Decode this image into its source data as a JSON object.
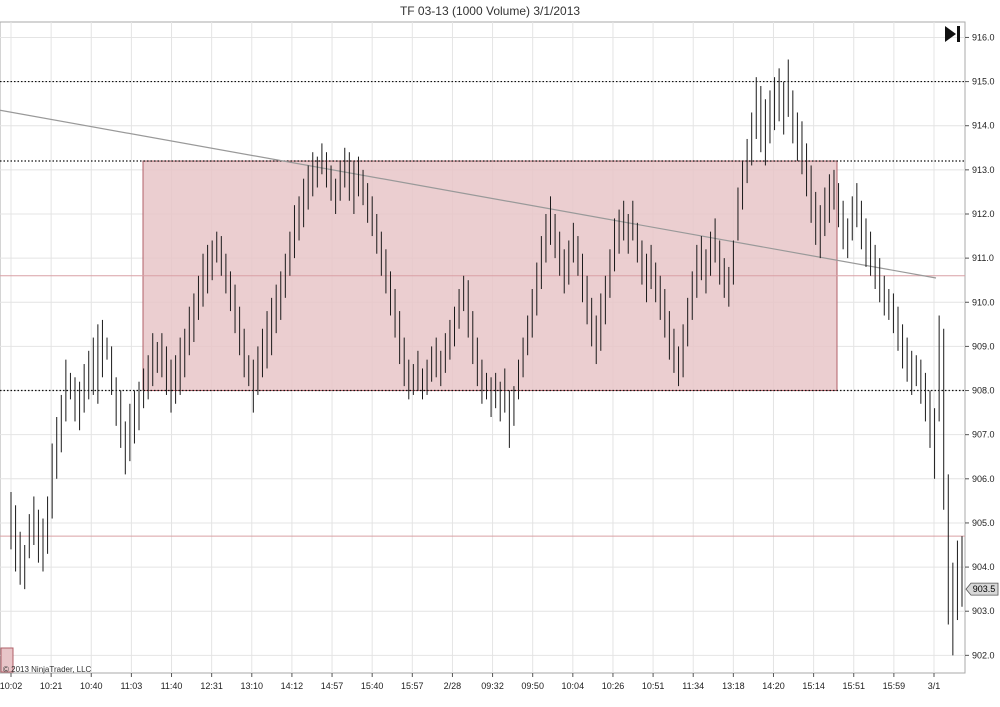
{
  "chart_data": {
    "type": "ohlc",
    "title": "TF 03-13 (1000 Volume)  3/1/2013",
    "ylim": [
      901.6,
      916.35
    ],
    "y_ticks": [
      "902.0",
      "903.0",
      "904.0",
      "905.0",
      "906.0",
      "907.0",
      "908.0",
      "909.0",
      "910.0",
      "911.0",
      "912.0",
      "913.0",
      "914.0",
      "915.0",
      "916.0"
    ],
    "x_ticks": [
      "10:02",
      "10:21",
      "10:40",
      "11:03",
      "11:40",
      "12:31",
      "13:10",
      "14:12",
      "14:57",
      "15:40",
      "15:57",
      "2/28",
      "09:32",
      "09:50",
      "10:04",
      "10:26",
      "10:51",
      "11:34",
      "13:18",
      "14:20",
      "15:14",
      "15:51",
      "15:59",
      "3/1"
    ],
    "horizontal_lines": {
      "dotted": [
        915.0,
        913.2,
        908.0
      ],
      "thin_red": [
        910.6,
        904.7
      ]
    },
    "zone": {
      "top": 913.2,
      "bottom": 908.0,
      "color": "#e8c5c8",
      "border": "#b06068"
    },
    "trendline": {
      "start": 914.35,
      "end": 910.55,
      "color": "#999999"
    },
    "last_price": "903.5",
    "grid": true,
    "bar_color": "#1a1a1a",
    "bars": [
      [
        904.4,
        905.7
      ],
      [
        903.9,
        905.4
      ],
      [
        903.6,
        904.8
      ],
      [
        903.5,
        904.5
      ],
      [
        904.2,
        905.2
      ],
      [
        904.5,
        905.6
      ],
      [
        904.1,
        905.3
      ],
      [
        903.9,
        905.1
      ],
      [
        904.3,
        905.6
      ],
      [
        905.1,
        906.8
      ],
      [
        906.0,
        907.4
      ],
      [
        906.6,
        907.9
      ],
      [
        907.3,
        908.7
      ],
      [
        907.8,
        908.4
      ],
      [
        907.3,
        908.3
      ],
      [
        907.1,
        908.2
      ],
      [
        907.5,
        908.6
      ],
      [
        907.8,
        908.9
      ],
      [
        907.9,
        909.2
      ],
      [
        907.7,
        909.5
      ],
      [
        908.3,
        909.6
      ],
      [
        908.7,
        909.2
      ],
      [
        907.9,
        909.0
      ],
      [
        907.2,
        908.3
      ],
      [
        906.7,
        908.0
      ],
      [
        906.1,
        907.3
      ],
      [
        906.4,
        907.7
      ],
      [
        906.8,
        908.0
      ],
      [
        907.1,
        908.2
      ],
      [
        907.6,
        908.5
      ],
      [
        907.8,
        908.8
      ],
      [
        908.1,
        909.3
      ],
      [
        908.4,
        909.1
      ],
      [
        908.3,
        909.3
      ],
      [
        907.9,
        909.0
      ],
      [
        907.5,
        908.7
      ],
      [
        907.7,
        908.8
      ],
      [
        907.9,
        909.2
      ],
      [
        908.3,
        909.4
      ],
      [
        908.8,
        909.9
      ],
      [
        909.1,
        910.2
      ],
      [
        909.6,
        910.6
      ],
      [
        909.9,
        911.1
      ],
      [
        910.2,
        911.3
      ],
      [
        910.5,
        911.4
      ],
      [
        910.9,
        911.6
      ],
      [
        910.6,
        911.5
      ],
      [
        910.2,
        911.1
      ],
      [
        909.8,
        910.7
      ],
      [
        909.3,
        910.4
      ],
      [
        908.8,
        909.9
      ],
      [
        908.3,
        909.4
      ],
      [
        908.1,
        908.8
      ],
      [
        907.5,
        908.7
      ],
      [
        907.9,
        909.0
      ],
      [
        908.3,
        909.4
      ],
      [
        908.5,
        909.8
      ],
      [
        908.8,
        910.1
      ],
      [
        909.3,
        910.4
      ],
      [
        909.6,
        910.7
      ],
      [
        910.1,
        911.1
      ],
      [
        910.6,
        911.6
      ],
      [
        911.0,
        912.2
      ],
      [
        911.4,
        912.4
      ],
      [
        911.7,
        912.8
      ],
      [
        912.1,
        913.1
      ],
      [
        912.4,
        913.4
      ],
      [
        912.6,
        913.3
      ],
      [
        912.9,
        913.6
      ],
      [
        912.6,
        913.4
      ],
      [
        912.3,
        913.1
      ],
      [
        912.0,
        912.8
      ],
      [
        912.3,
        913.2
      ],
      [
        912.6,
        913.5
      ],
      [
        912.3,
        913.4
      ],
      [
        912.0,
        913.2
      ],
      [
        912.4,
        913.3
      ],
      [
        912.2,
        913.0
      ],
      [
        911.8,
        912.7
      ],
      [
        911.5,
        912.4
      ],
      [
        911.1,
        912.0
      ],
      [
        910.6,
        911.6
      ],
      [
        910.2,
        911.2
      ],
      [
        909.7,
        910.7
      ],
      [
        909.2,
        910.3
      ],
      [
        908.6,
        909.8
      ],
      [
        908.1,
        909.2
      ],
      [
        907.8,
        908.7
      ],
      [
        907.9,
        908.6
      ],
      [
        908.0,
        908.9
      ],
      [
        907.8,
        908.5
      ],
      [
        907.9,
        908.7
      ],
      [
        908.2,
        909.0
      ],
      [
        908.3,
        909.2
      ],
      [
        908.1,
        908.9
      ],
      [
        908.4,
        909.3
      ],
      [
        908.7,
        909.6
      ],
      [
        909.0,
        909.9
      ],
      [
        909.4,
        910.3
      ],
      [
        909.8,
        910.6
      ],
      [
        909.2,
        910.5
      ],
      [
        908.6,
        909.8
      ],
      [
        908.1,
        909.2
      ],
      [
        907.7,
        908.7
      ],
      [
        907.8,
        908.4
      ],
      [
        907.4,
        908.3
      ],
      [
        907.6,
        908.4
      ],
      [
        907.3,
        908.2
      ],
      [
        907.5,
        908.5
      ],
      [
        906.7,
        908.0
      ],
      [
        907.2,
        908.1
      ],
      [
        907.8,
        908.7
      ],
      [
        908.3,
        909.2
      ],
      [
        908.8,
        909.7
      ],
      [
        909.2,
        910.3
      ],
      [
        909.7,
        910.9
      ],
      [
        910.3,
        911.5
      ],
      [
        910.9,
        912.0
      ],
      [
        911.3,
        912.4
      ],
      [
        911.0,
        912.0
      ],
      [
        910.6,
        911.6
      ],
      [
        910.2,
        911.2
      ],
      [
        910.4,
        911.4
      ],
      [
        910.9,
        911.8
      ],
      [
        910.6,
        911.5
      ],
      [
        910.0,
        911.1
      ],
      [
        909.5,
        910.6
      ],
      [
        909.0,
        910.1
      ],
      [
        908.6,
        909.7
      ],
      [
        908.9,
        910.2
      ],
      [
        909.5,
        910.6
      ],
      [
        910.1,
        911.2
      ],
      [
        910.7,
        911.9
      ],
      [
        911.1,
        912.1
      ],
      [
        911.4,
        912.3
      ],
      [
        911.1,
        912.0
      ],
      [
        911.4,
        912.3
      ],
      [
        910.9,
        911.8
      ],
      [
        910.4,
        911.4
      ],
      [
        910.0,
        911.1
      ],
      [
        910.3,
        911.3
      ],
      [
        910.0,
        910.9
      ],
      [
        909.6,
        910.6
      ],
      [
        909.2,
        910.3
      ],
      [
        908.7,
        909.8
      ],
      [
        908.4,
        909.4
      ],
      [
        908.1,
        909.0
      ],
      [
        908.3,
        909.5
      ],
      [
        909.0,
        910.1
      ],
      [
        909.6,
        910.7
      ],
      [
        910.1,
        911.3
      ],
      [
        910.5,
        911.5
      ],
      [
        910.2,
        911.2
      ],
      [
        910.6,
        911.6
      ],
      [
        910.9,
        911.9
      ],
      [
        910.4,
        911.4
      ],
      [
        910.1,
        911.0
      ],
      [
        909.9,
        910.8
      ],
      [
        910.4,
        911.4
      ],
      [
        911.4,
        912.6
      ],
      [
        912.1,
        913.2
      ],
      [
        912.7,
        913.7
      ],
      [
        913.1,
        914.3
      ],
      [
        913.7,
        915.1
      ],
      [
        913.4,
        914.9
      ],
      [
        913.1,
        914.6
      ],
      [
        913.6,
        914.8
      ],
      [
        913.9,
        915.1
      ],
      [
        914.1,
        915.3
      ],
      [
        913.8,
        915.0
      ],
      [
        914.2,
        915.5
      ],
      [
        913.6,
        914.8
      ],
      [
        913.2,
        914.3
      ],
      [
        912.9,
        914.1
      ],
      [
        912.4,
        913.6
      ],
      [
        911.8,
        913.1
      ],
      [
        911.3,
        912.5
      ],
      [
        911.0,
        912.2
      ],
      [
        911.5,
        912.6
      ],
      [
        911.8,
        912.9
      ],
      [
        912.1,
        913.0
      ],
      [
        911.7,
        912.7
      ],
      [
        911.2,
        912.3
      ],
      [
        911.0,
        911.9
      ],
      [
        911.4,
        912.4
      ],
      [
        911.7,
        912.7
      ],
      [
        911.2,
        912.3
      ],
      [
        910.8,
        911.9
      ],
      [
        910.6,
        911.6
      ],
      [
        910.3,
        911.3
      ],
      [
        910.0,
        911.0
      ],
      [
        909.7,
        910.6
      ],
      [
        909.6,
        910.3
      ],
      [
        909.3,
        910.2
      ],
      [
        908.9,
        909.9
      ],
      [
        908.5,
        909.5
      ],
      [
        908.2,
        909.2
      ],
      [
        907.9,
        908.9
      ],
      [
        908.1,
        908.8
      ],
      [
        907.7,
        908.7
      ],
      [
        907.3,
        908.4
      ],
      [
        906.7,
        908.0
      ],
      [
        906.0,
        907.6
      ],
      [
        907.3,
        909.7
      ],
      [
        905.3,
        909.4
      ],
      [
        902.7,
        906.1
      ],
      [
        902.0,
        904.1
      ],
      [
        902.8,
        904.6
      ],
      [
        903.1,
        904.7
      ]
    ]
  }
}
